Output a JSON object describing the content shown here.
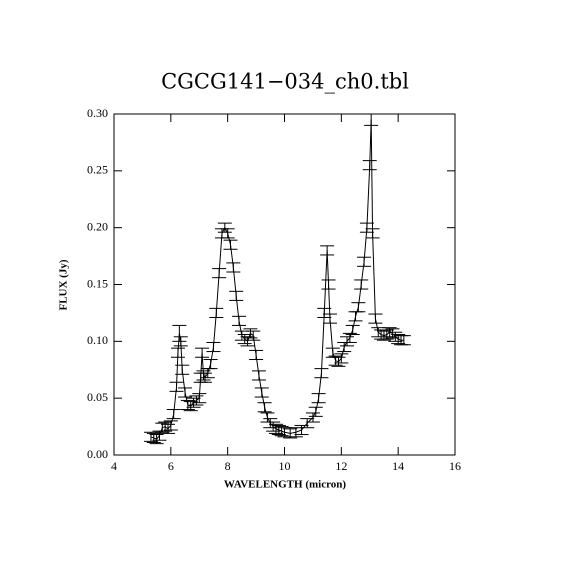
{
  "chart_data": {
    "type": "errorbar-line",
    "title": "CGCG141−034_ch0.tbl",
    "xlabel": "WAVELENGTH (micron)",
    "ylabel": "FLUX (Jy)",
    "xlim": [
      4,
      16
    ],
    "xticks": [
      4,
      6,
      8,
      10,
      12,
      14,
      16
    ],
    "ylim": [
      0,
      0.3
    ],
    "yticks": [
      {
        "value": 0,
        "label": "0.00"
      },
      {
        "value": 0.05,
        "label": "0.05"
      },
      {
        "value": 0.1,
        "label": "0.10"
      },
      {
        "value": 0.15,
        "label": "0.15"
      },
      {
        "value": 0.2,
        "label": "0.20"
      },
      {
        "value": 0.25,
        "label": "0.25"
      },
      {
        "value": 0.3,
        "label": "0.30"
      }
    ],
    "color": "#000000",
    "x": [
      5.3,
      5.4,
      5.5,
      5.6,
      5.7,
      5.8,
      5.9,
      6.0,
      6.1,
      6.2,
      6.25,
      6.3,
      6.35,
      6.4,
      6.5,
      6.6,
      6.7,
      6.8,
      6.9,
      7.0,
      7.05,
      7.1,
      7.15,
      7.2,
      7.3,
      7.4,
      7.5,
      7.6,
      7.7,
      7.8,
      7.9,
      8.0,
      8.1,
      8.2,
      8.3,
      8.4,
      8.5,
      8.6,
      8.7,
      8.8,
      8.9,
      9.0,
      9.1,
      9.2,
      9.3,
      9.4,
      9.5,
      9.6,
      9.7,
      9.8,
      9.9,
      10.0,
      10.2,
      10.4,
      10.6,
      10.8,
      11.0,
      11.1,
      11.2,
      11.3,
      11.4,
      11.5,
      11.55,
      11.6,
      11.7,
      11.8,
      11.9,
      12.0,
      12.1,
      12.2,
      12.3,
      12.4,
      12.5,
      12.6,
      12.7,
      12.8,
      12.9,
      13.0,
      13.05,
      13.1,
      13.2,
      13.3,
      13.4,
      13.5,
      13.6,
      13.7,
      13.8,
      13.9,
      14.0,
      14.1,
      14.2
    ],
    "values": [
      0.016,
      0.015,
      0.014,
      0.017,
      0.024,
      0.025,
      0.023,
      0.026,
      0.036,
      0.06,
      0.09,
      0.107,
      0.1,
      0.075,
      0.055,
      0.044,
      0.043,
      0.046,
      0.048,
      0.05,
      0.068,
      0.09,
      0.07,
      0.068,
      0.072,
      0.08,
      0.095,
      0.125,
      0.16,
      0.195,
      0.2,
      0.195,
      0.185,
      0.165,
      0.14,
      0.118,
      0.105,
      0.102,
      0.1,
      0.107,
      0.105,
      0.088,
      0.07,
      0.055,
      0.042,
      0.033,
      0.028,
      0.025,
      0.023,
      0.022,
      0.021,
      0.02,
      0.019,
      0.02,
      0.022,
      0.028,
      0.033,
      0.038,
      0.05,
      0.072,
      0.125,
      0.18,
      0.15,
      0.12,
      0.09,
      0.083,
      0.082,
      0.085,
      0.095,
      0.1,
      0.103,
      0.11,
      0.122,
      0.13,
      0.15,
      0.17,
      0.2,
      0.255,
      0.295,
      0.195,
      0.12,
      0.108,
      0.106,
      0.105,
      0.106,
      0.108,
      0.107,
      0.104,
      0.102,
      0.101,
      0.101
    ],
    "errors": [
      0.004,
      0.004,
      0.004,
      0.004,
      0.004,
      0.004,
      0.004,
      0.004,
      0.004,
      0.004,
      0.004,
      0.007,
      0.004,
      0.004,
      0.004,
      0.004,
      0.004,
      0.004,
      0.004,
      0.004,
      0.004,
      0.004,
      0.004,
      0.004,
      0.004,
      0.004,
      0.004,
      0.004,
      0.004,
      0.004,
      0.004,
      0.004,
      0.004,
      0.004,
      0.004,
      0.004,
      0.004,
      0.004,
      0.004,
      0.004,
      0.004,
      0.004,
      0.004,
      0.004,
      0.004,
      0.004,
      0.004,
      0.004,
      0.004,
      0.004,
      0.004,
      0.004,
      0.004,
      0.004,
      0.004,
      0.004,
      0.004,
      0.004,
      0.004,
      0.004,
      0.004,
      0.004,
      0.004,
      0.004,
      0.004,
      0.004,
      0.004,
      0.004,
      0.004,
      0.004,
      0.004,
      0.004,
      0.004,
      0.004,
      0.004,
      0.004,
      0.004,
      0.004,
      0.005,
      0.004,
      0.004,
      0.004,
      0.004,
      0.004,
      0.004,
      0.004,
      0.004,
      0.004,
      0.004,
      0.004,
      0.004
    ]
  }
}
